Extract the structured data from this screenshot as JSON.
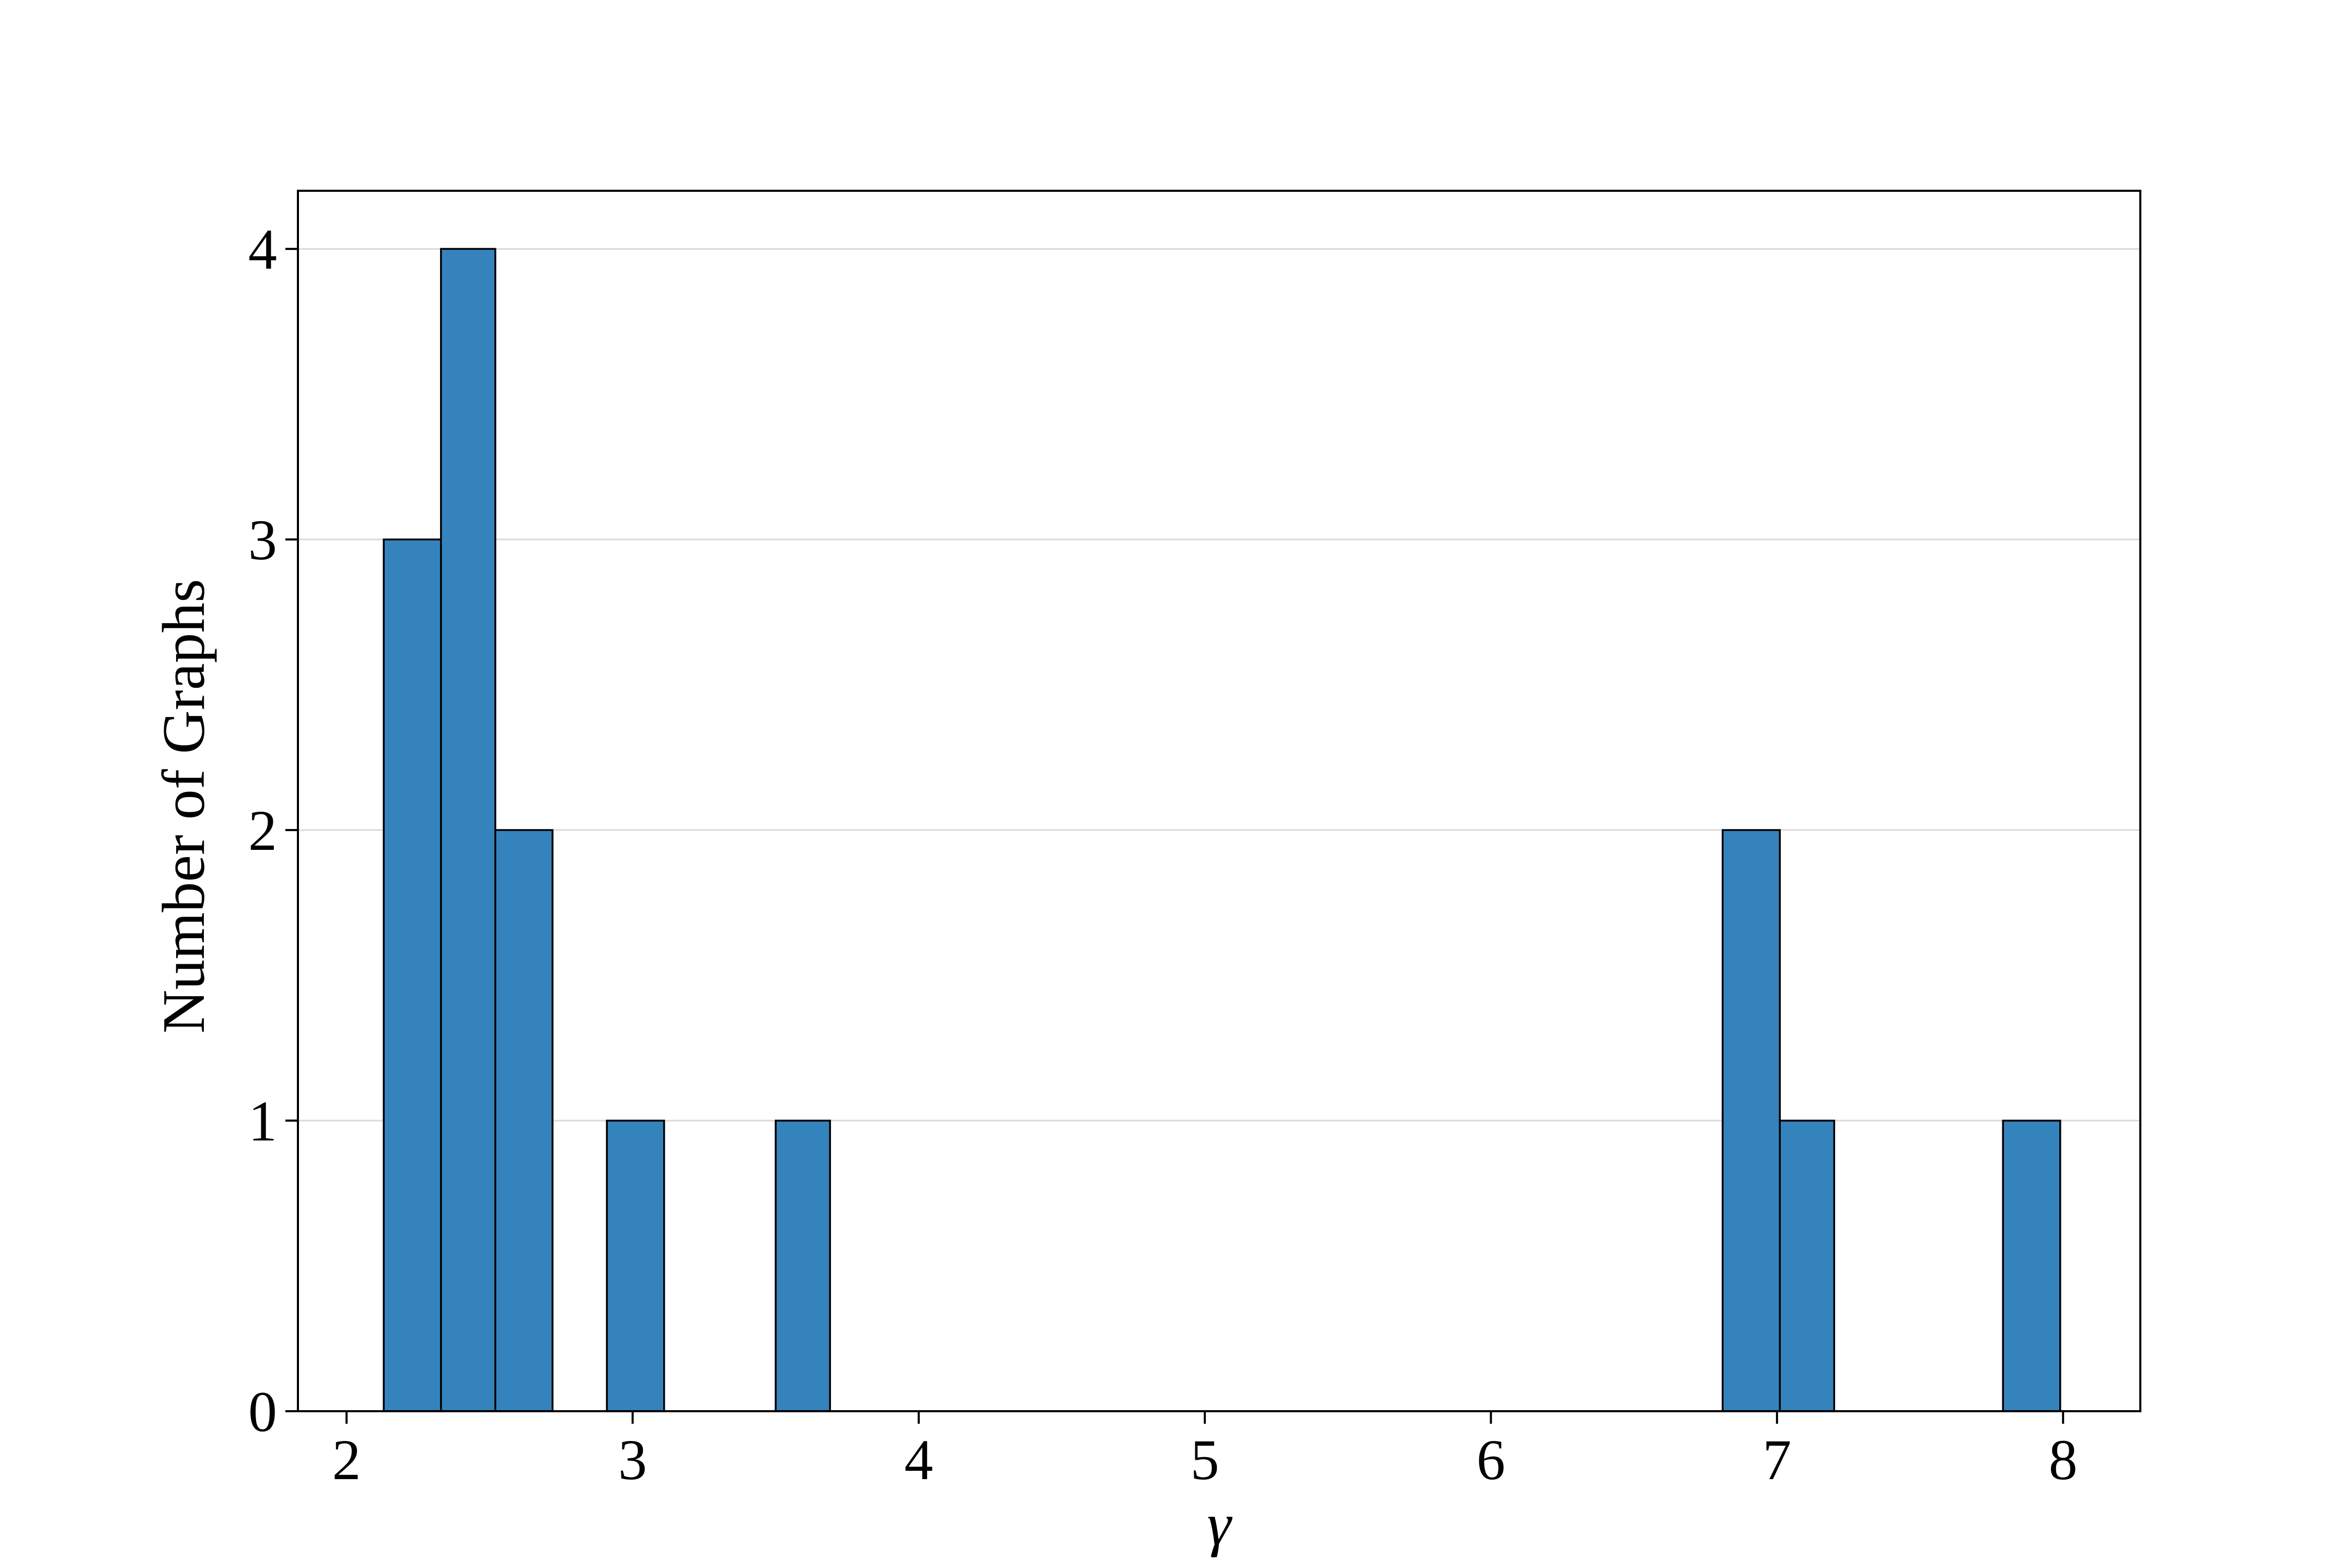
{
  "chart_data": {
    "type": "bar",
    "subtype": "histogram",
    "xlabel": "γ",
    "ylabel": "Number of Graphs",
    "xlim": [
      1.83,
      8.27
    ],
    "ylim": [
      0,
      4.2
    ],
    "x_ticks": [
      2,
      3,
      4,
      5,
      6,
      7,
      8
    ],
    "y_ticks": [
      0,
      1,
      2,
      3,
      4
    ],
    "grid": "horizontal",
    "bins": [
      {
        "x0": 2.13,
        "x1": 2.33,
        "value": 3
      },
      {
        "x0": 2.33,
        "x1": 2.52,
        "value": 4
      },
      {
        "x0": 2.52,
        "x1": 2.72,
        "value": 2
      },
      {
        "x0": 2.91,
        "x1": 3.11,
        "value": 1
      },
      {
        "x0": 3.5,
        "x1": 3.69,
        "value": 1
      },
      {
        "x0": 6.81,
        "x1": 7.01,
        "value": 2
      },
      {
        "x0": 7.01,
        "x1": 7.2,
        "value": 1
      },
      {
        "x0": 7.79,
        "x1": 7.99,
        "value": 1
      }
    ],
    "colors": {
      "bar_fill": "#3583bd",
      "bar_edge": "#000000",
      "grid": "#d9d9d9",
      "frame": "#000000"
    }
  }
}
